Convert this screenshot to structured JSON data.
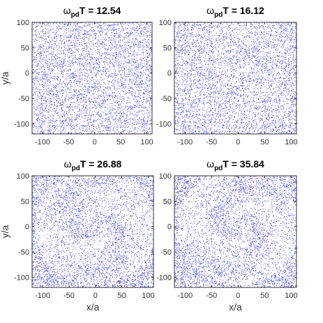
{
  "chart_data": [
    {
      "type": "scatter",
      "title": "T = 12.54",
      "title_symbol": "ω",
      "title_subscript": "pd",
      "xlim": [
        -120,
        110
      ],
      "ylim": [
        -120,
        100
      ],
      "xticks": [
        -100,
        -50,
        0,
        50,
        100
      ],
      "yticks": [
        -100,
        -50,
        0,
        50,
        100
      ],
      "xlabel": "",
      "ylabel": "y/a",
      "marker_color": "#1a1adc",
      "spiral_turns": 0.0,
      "spiral_strength": 0.0
    },
    {
      "type": "scatter",
      "title": "T = 16.12",
      "title_symbol": "ω",
      "title_subscript": "pd",
      "xlim": [
        -120,
        110
      ],
      "ylim": [
        -120,
        100
      ],
      "xticks": [
        -100,
        -50,
        0,
        50,
        100
      ],
      "yticks": [
        -100,
        -50,
        0,
        50,
        100
      ],
      "xlabel": "",
      "ylabel": "",
      "marker_color": "#1a1adc",
      "spiral_turns": 1.2,
      "spiral_strength": 0.35
    },
    {
      "type": "scatter",
      "title": "T =  26.88",
      "title_symbol": "ω",
      "title_subscript": "pd",
      "xlim": [
        -120,
        110
      ],
      "ylim": [
        -120,
        100
      ],
      "xticks": [
        -100,
        -50,
        0,
        50,
        100
      ],
      "yticks": [
        -100,
        -50,
        0,
        50,
        100
      ],
      "xlabel": "x/a",
      "ylabel": "y/a",
      "marker_color": "#1a1adc",
      "spiral_turns": 1.8,
      "spiral_strength": 0.75
    },
    {
      "type": "scatter",
      "title": "T =  35.84",
      "title_symbol": "ω",
      "title_subscript": "pd",
      "xlim": [
        -120,
        110
      ],
      "ylim": [
        -120,
        100
      ],
      "xticks": [
        -100,
        -50,
        0,
        50,
        100
      ],
      "yticks": [
        -100,
        -50,
        0,
        50,
        100
      ],
      "xlabel": "x/a",
      "ylabel": "",
      "marker_color": "#1a1adc",
      "spiral_turns": 2.0,
      "spiral_strength": 0.8
    }
  ]
}
